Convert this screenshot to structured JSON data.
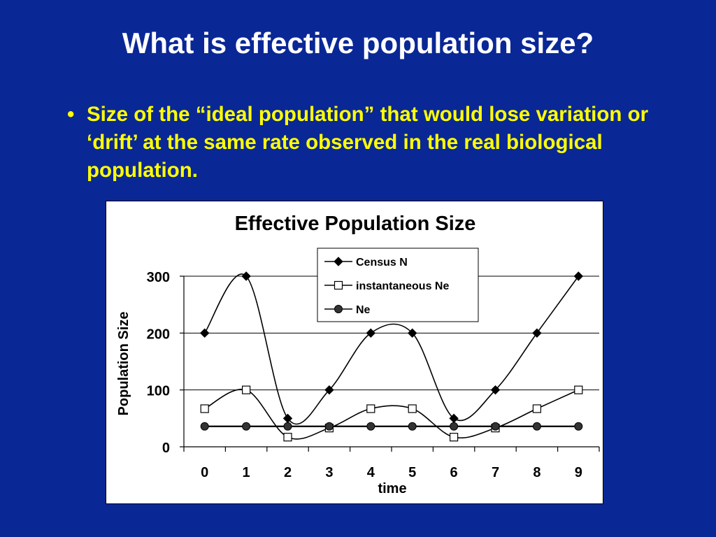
{
  "slide": {
    "title": "What is effective population size?",
    "bullet": "Size of the “ideal population” that would lose variation or ‘drift’ at the same rate observed in the real biological population."
  },
  "colors": {
    "background": "#0a2796",
    "title": "#ffffff",
    "bullet": "#ffff00"
  },
  "chart_data": {
    "type": "line",
    "title": "Effective Population Size",
    "xlabel": "time",
    "ylabel": "Population Size",
    "categories": [
      "0",
      "1",
      "2",
      "3",
      "4",
      "5",
      "6",
      "7",
      "8",
      "9"
    ],
    "ylim": [
      0,
      300
    ],
    "yticks": [
      0,
      100,
      200,
      300
    ],
    "grid": true,
    "legend_position": "top-right",
    "series": [
      {
        "name": "Census N",
        "marker": "diamond-filled",
        "values": [
          200,
          300,
          50,
          100,
          200,
          200,
          50,
          100,
          200,
          300
        ]
      },
      {
        "name": "instantaneous Ne",
        "marker": "square-open",
        "values": [
          67,
          100,
          17,
          33,
          67,
          67,
          17,
          33,
          67,
          100
        ]
      },
      {
        "name": "Ne",
        "marker": "circle-filled",
        "values": [
          36,
          36,
          36,
          36,
          36,
          36,
          36,
          36,
          36,
          36
        ]
      }
    ]
  }
}
